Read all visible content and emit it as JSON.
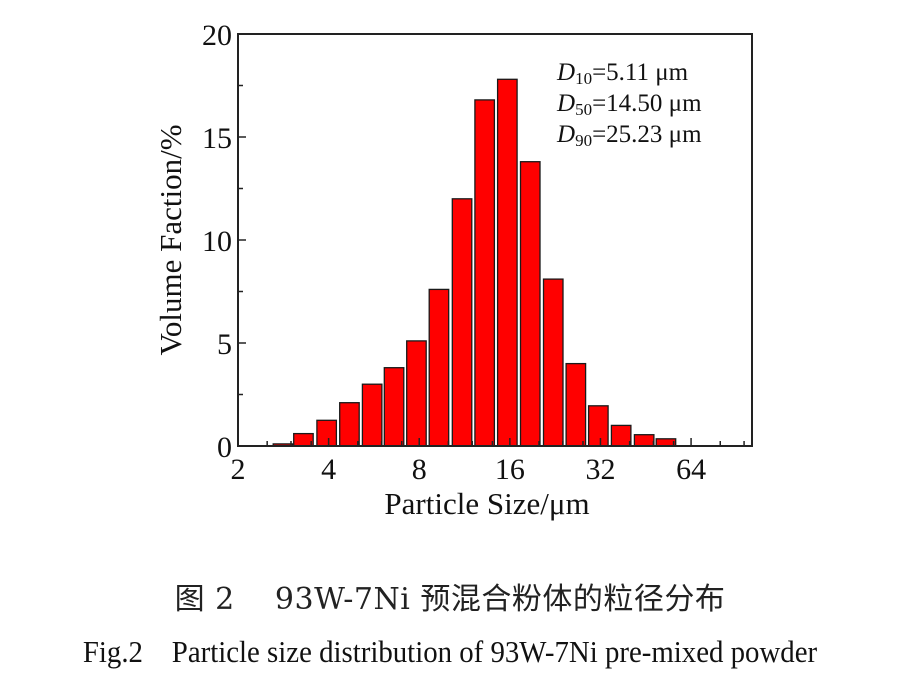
{
  "chart_data": {
    "type": "bar",
    "title": "",
    "xlabel": "Particle Size/μm",
    "ylabel": "Volume Faction/%",
    "xscale": "log2",
    "xlim": [
      2,
      102
    ],
    "ylim": [
      0,
      20
    ],
    "grid": false,
    "xticks": [
      2,
      4,
      8,
      16,
      32,
      64
    ],
    "xtick_labels": [
      "2",
      "4",
      "8",
      "16",
      "32",
      "64"
    ],
    "yticks": [
      0,
      5,
      10,
      15,
      20
    ],
    "ytick_labels": [
      "0",
      "5",
      "10",
      "15",
      "20"
    ],
    "bar_color": "#ff0000",
    "bar_edge_color": "#1a1a1a",
    "x": [
      2.82,
      3.3,
      3.94,
      4.69,
      5.58,
      6.6,
      7.83,
      9.3,
      11.1,
      13.2,
      15.7,
      18.7,
      22.3,
      26.5,
      31.5,
      37.5,
      44.7,
      52.8
    ],
    "values": [
      0.1,
      0.6,
      1.25,
      2.1,
      3.0,
      3.8,
      5.1,
      7.6,
      12.0,
      16.8,
      17.8,
      13.8,
      8.1,
      4.0,
      1.95,
      1.0,
      0.55,
      0.35
    ],
    "annotations": [
      {
        "symbol": "D",
        "subscript": "10",
        "text": "=5.11 μm"
      },
      {
        "symbol": "D",
        "subscript": "50",
        "text": "=14.50 μm"
      },
      {
        "symbol": "D",
        "subscript": "90",
        "text": "=25.23 μm"
      }
    ],
    "annotation_placement": "top-right"
  },
  "caption": {
    "chinese": "图 2    93W-7Ni 预混合粉体的粒径分布",
    "english": "Fig.2    Particle size distribution of 93W-7Ni pre-mixed powder"
  }
}
